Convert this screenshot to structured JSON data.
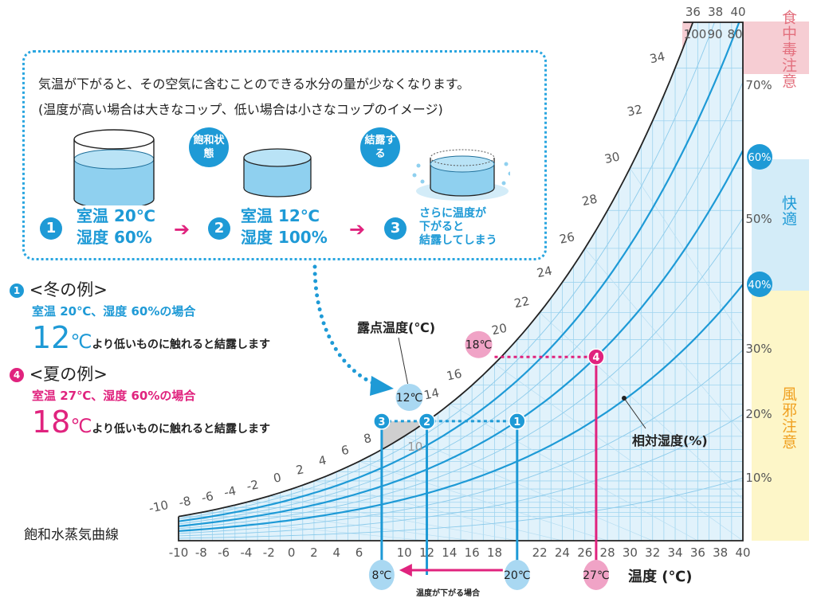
{
  "intro": {
    "line1": "気温が下がると、その空気に含むことのできる水分の量が少なくなります。",
    "line2": "(温度が高い場合は大きなコップ、低い場合は小さなコップのイメージ)",
    "bubble_saturated": "飽和状態",
    "bubble_condense": "結露する",
    "steps": [
      {
        "num": "1",
        "line1": "室温 20℃",
        "line2": "湿度 60%"
      },
      {
        "num": "2",
        "line1": "室温 12℃",
        "line2": "湿度 100%"
      },
      {
        "num": "3",
        "line1": "さらに温度が",
        "line2": "下がると",
        "line3": "結露してしまう"
      }
    ]
  },
  "examples": {
    "winter": {
      "num": "1",
      "title": "<冬の例>",
      "condition": "室温 20℃、湿度 60%の場合",
      "value": "12",
      "unit": "℃",
      "text": "より低いものに触れると結露します",
      "color": "#1e9ad6"
    },
    "summer": {
      "num": "4",
      "title": "<夏の例>",
      "condition": "室温 27℃、湿度 60%の場合",
      "value": "18",
      "unit": "℃",
      "text": "より低いものに触れると結露します",
      "color": "#e0237e"
    }
  },
  "labels": {
    "saturation_curve": "飽和水蒸気曲線",
    "dew_point": "露点温度(℃)",
    "relative_humidity": "相対湿度(%)",
    "temperature": "温度 (℃)",
    "temp_drop": "温度が下がる場合"
  },
  "zones": {
    "food_poisoning": {
      "label": "食中毒注意",
      "color": "#f6cdd3",
      "text_color": "#e3707e"
    },
    "comfortable": {
      "label": "快適",
      "color": "#d3ecf8",
      "text_color": "#1e9ad6"
    },
    "cold_caution": {
      "label": "風邪注意",
      "color": "#fdf6c8",
      "text_color": "#f0a020"
    }
  },
  "chart_data": {
    "type": "line",
    "xlabel": "温度 (℃)",
    "xlim": [
      -10,
      40
    ],
    "x_ticks": [
      "-10",
      "-8",
      "-6",
      "-4",
      "-2",
      "0",
      "2",
      "4",
      "6",
      "10",
      "12",
      "14",
      "16",
      "18",
      "22",
      "24",
      "26",
      "28",
      "30",
      "32",
      "34",
      "36",
      "38",
      "40"
    ],
    "dew_point_labels": [
      "-10",
      "-8",
      "-6",
      "-4",
      "-2",
      "0",
      "2",
      "4",
      "6",
      "8",
      "10",
      "14",
      "16",
      "20",
      "22",
      "24",
      "26",
      "28",
      "30",
      "32",
      "34"
    ],
    "top_labels": [
      "36",
      "38",
      "40"
    ],
    "top_rh_labels": [
      "100",
      "90",
      "80"
    ],
    "rh_curves": [
      10,
      20,
      30,
      40,
      50,
      60,
      70,
      80,
      90,
      100
    ],
    "rh_thick": [
      40,
      60,
      80
    ],
    "rh_labels": [
      "70%",
      "60%",
      "50%",
      "40%",
      "30%",
      "20%",
      "10%"
    ],
    "rh_highlight": [
      "60%",
      "40%"
    ],
    "points": [
      {
        "id": "1",
        "temp": 20,
        "rh": 60,
        "color": "#1e9ad6"
      },
      {
        "id": "2",
        "temp": 12,
        "rh": 100,
        "color": "#1e9ad6"
      },
      {
        "id": "3",
        "temp": 8,
        "dew_point": 12,
        "color": "#1e9ad6"
      },
      {
        "id": "4",
        "temp": 27,
        "rh": 60,
        "color": "#e0237e"
      }
    ],
    "dew_markers": [
      {
        "label": "12℃",
        "temp": 12,
        "color": "#a9d8f2"
      },
      {
        "label": "18℃",
        "temp": 18,
        "color": "#f0a3c6"
      }
    ],
    "temp_markers": [
      {
        "label": "8℃",
        "temp": 8,
        "color": "#a9d8f2"
      },
      {
        "label": "20℃",
        "temp": 20,
        "color": "#a9d8f2"
      },
      {
        "label": "27℃",
        "temp": 27,
        "color": "#f0a3c6"
      }
    ]
  }
}
